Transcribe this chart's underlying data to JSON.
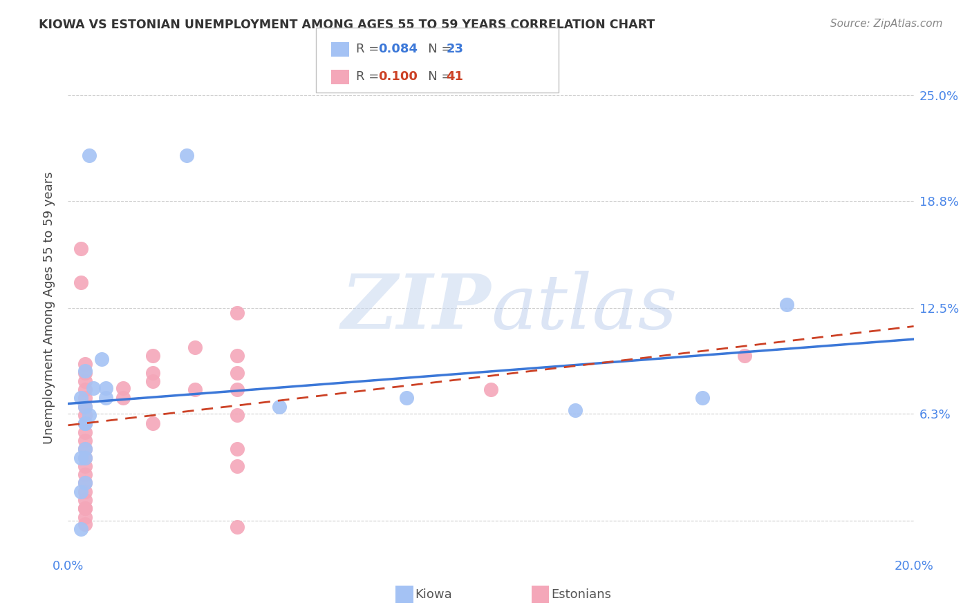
{
  "title": "KIOWA VS ESTONIAN UNEMPLOYMENT AMONG AGES 55 TO 59 YEARS CORRELATION CHART",
  "source": "Source: ZipAtlas.com",
  "ylabel": "Unemployment Among Ages 55 to 59 years",
  "xlim": [
    0.0,
    0.2
  ],
  "ylim": [
    -0.02,
    0.27
  ],
  "ytick_vals": [
    0.0,
    0.063,
    0.125,
    0.188,
    0.25
  ],
  "ytick_labels": [
    "",
    "6.3%",
    "12.5%",
    "18.8%",
    "25.0%"
  ],
  "xtick_vals": [
    0.0,
    0.05,
    0.1,
    0.15,
    0.2
  ],
  "xtick_labels": [
    "0.0%",
    "",
    "",
    "",
    "20.0%"
  ],
  "kiowa_color": "#a4c2f4",
  "estonian_color": "#f4a7b9",
  "kiowa_line_color": "#3c78d8",
  "estonian_line_color": "#cc4125",
  "kiowa_R": 0.084,
  "kiowa_N": 23,
  "estonian_R": 0.1,
  "estonian_N": 41,
  "tick_color": "#4a86e8",
  "background_color": "#ffffff",
  "legend_labels": [
    "Kiowa",
    "Estonians"
  ],
  "kiowa_x": [
    0.005,
    0.028,
    0.008,
    0.004,
    0.006,
    0.003,
    0.009,
    0.009,
    0.004,
    0.005,
    0.004,
    0.004,
    0.004,
    0.004,
    0.003,
    0.003,
    0.05,
    0.08,
    0.12,
    0.15,
    0.17,
    0.004,
    0.003
  ],
  "kiowa_y": [
    0.215,
    0.215,
    0.095,
    0.088,
    0.078,
    0.072,
    0.078,
    0.072,
    0.067,
    0.062,
    0.057,
    0.042,
    0.037,
    0.022,
    0.017,
    -0.005,
    0.067,
    0.072,
    0.065,
    0.072,
    0.127,
    0.057,
    0.037
  ],
  "estonian_x": [
    0.003,
    0.003,
    0.013,
    0.013,
    0.004,
    0.004,
    0.004,
    0.004,
    0.004,
    0.004,
    0.004,
    0.004,
    0.004,
    0.004,
    0.004,
    0.004,
    0.004,
    0.004,
    0.004,
    0.004,
    0.004,
    0.004,
    0.004,
    0.004,
    0.02,
    0.02,
    0.02,
    0.02,
    0.03,
    0.03,
    0.04,
    0.04,
    0.04,
    0.04,
    0.04,
    0.04,
    0.04,
    0.04,
    0.1,
    0.16,
    0.004
  ],
  "estonian_y": [
    0.16,
    0.14,
    0.078,
    0.072,
    0.072,
    0.067,
    0.062,
    0.057,
    0.052,
    0.047,
    0.042,
    0.037,
    0.032,
    0.027,
    0.022,
    0.017,
    0.012,
    0.007,
    0.002,
    -0.002,
    0.092,
    0.087,
    0.082,
    0.077,
    0.097,
    0.087,
    0.082,
    0.057,
    0.102,
    0.077,
    0.122,
    0.097,
    0.087,
    0.077,
    0.062,
    0.042,
    0.032,
    -0.004,
    0.077,
    0.097,
    0.007
  ]
}
